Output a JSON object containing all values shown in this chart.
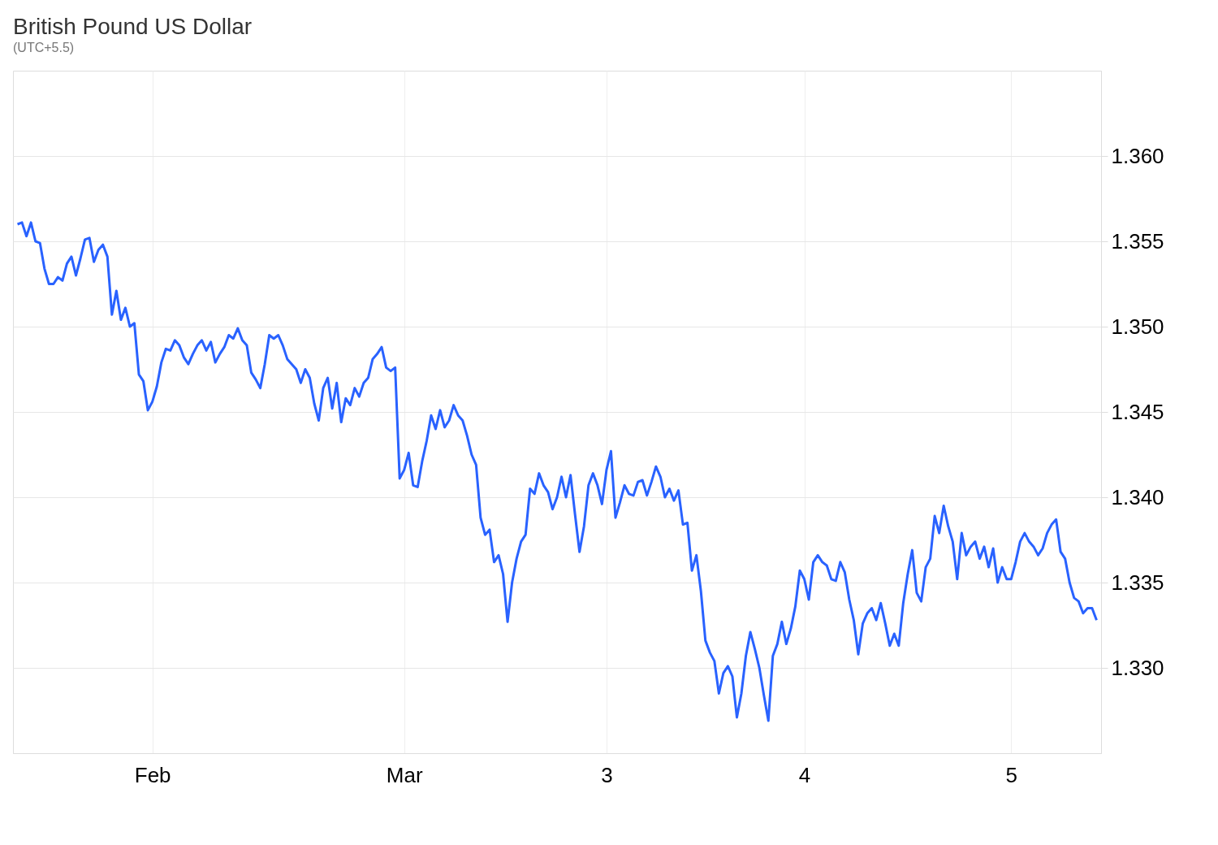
{
  "chart_data": {
    "type": "line",
    "title": "British Pound US Dollar",
    "subtitle": "(UTC+5.5)",
    "categories": [
      null,
      null,
      null,
      null,
      null,
      null,
      null,
      null,
      null,
      null,
      null,
      null,
      null,
      null,
      null,
      null,
      null,
      null,
      null,
      null,
      null,
      null,
      null,
      null,
      null,
      null,
      null,
      null,
      null,
      null,
      "Feb",
      null,
      null,
      null,
      null,
      null,
      null,
      null,
      null,
      null,
      null,
      null,
      null,
      null,
      null,
      null,
      null,
      null,
      null,
      null,
      null,
      null,
      null,
      null,
      null,
      null,
      null,
      null,
      null,
      null,
      null,
      null,
      null,
      null,
      null,
      null,
      null,
      null,
      null,
      null,
      null,
      null,
      null,
      null,
      null,
      null,
      null,
      null,
      null,
      null,
      null,
      null,
      null,
      null,
      null,
      null,
      "Mar",
      null,
      null,
      null,
      null,
      null,
      null,
      null,
      null,
      null,
      null,
      null,
      null,
      null,
      null,
      null,
      null,
      null,
      null,
      null,
      null,
      null,
      null,
      null,
      null,
      null,
      null,
      null,
      null,
      null,
      null,
      null,
      null,
      null,
      null,
      null,
      null,
      null,
      null,
      null,
      null,
      null,
      null,
      null,
      null,
      "3",
      null,
      null,
      null,
      null,
      null,
      null,
      null,
      null,
      null,
      null,
      null,
      null,
      null,
      null,
      null,
      null,
      null,
      null,
      null,
      null,
      null,
      null,
      null,
      null,
      null,
      null,
      null,
      null,
      null,
      null,
      null,
      null,
      null,
      null,
      null,
      null,
      null,
      null,
      null,
      null,
      null,
      null,
      null,
      "4",
      null,
      null,
      null,
      null,
      null,
      null,
      null,
      null,
      null,
      null,
      null,
      null,
      null,
      null,
      null,
      null,
      null,
      null,
      null,
      null,
      null,
      null,
      null,
      null,
      null,
      null,
      null,
      null,
      null,
      null,
      null,
      null,
      null,
      null,
      null,
      null,
      null,
      null,
      null,
      null,
      null,
      null,
      null,
      null,
      null,
      "5",
      null,
      null,
      null,
      null,
      null,
      null,
      null,
      null,
      null,
      null,
      null,
      null,
      null,
      null,
      null,
      null,
      null,
      null,
      null
    ],
    "values": [
      1.356,
      1.3561,
      1.3553,
      1.3561,
      1.355,
      1.3549,
      1.3534,
      1.3525,
      1.3525,
      1.3529,
      1.3527,
      1.3537,
      1.3541,
      1.353,
      1.354,
      1.3551,
      1.3552,
      1.3538,
      1.3545,
      1.3548,
      1.3541,
      1.3507,
      1.3521,
      1.3504,
      1.3511,
      1.35,
      1.3502,
      1.3472,
      1.3468,
      1.3451,
      1.3456,
      1.3465,
      1.3479,
      1.3487,
      1.3486,
      1.3492,
      1.3489,
      1.3482,
      1.3478,
      1.3484,
      1.3489,
      1.3492,
      1.3486,
      1.3491,
      1.3479,
      1.3484,
      1.3488,
      1.3495,
      1.3493,
      1.3499,
      1.3492,
      1.3489,
      1.3473,
      1.3469,
      1.3464,
      1.3478,
      1.3495,
      1.3493,
      1.3495,
      1.3489,
      1.3481,
      1.3478,
      1.3475,
      1.3467,
      1.3475,
      1.347,
      1.3455,
      1.3445,
      1.3464,
      1.347,
      1.3452,
      1.3467,
      1.3444,
      1.3458,
      1.3454,
      1.3464,
      1.3459,
      1.3467,
      1.347,
      1.3481,
      1.3484,
      1.3488,
      1.3476,
      1.3474,
      1.3476,
      1.3411,
      1.3416,
      1.3426,
      1.3407,
      1.3406,
      1.3421,
      1.3433,
      1.3448,
      1.344,
      1.3451,
      1.3441,
      1.3445,
      1.3454,
      1.3448,
      1.3445,
      1.3436,
      1.3425,
      1.3419,
      1.3388,
      1.3378,
      1.3381,
      1.3362,
      1.3366,
      1.3355,
      1.3327,
      1.335,
      1.3364,
      1.3374,
      1.3378,
      1.3405,
      1.3402,
      1.3414,
      1.3407,
      1.3403,
      1.3393,
      1.34,
      1.3412,
      1.34,
      1.3413,
      1.339,
      1.3368,
      1.3383,
      1.3407,
      1.3414,
      1.3407,
      1.3396,
      1.3416,
      1.3427,
      1.3388,
      1.3397,
      1.3407,
      1.3402,
      1.3401,
      1.3409,
      1.341,
      1.3401,
      1.3409,
      1.3418,
      1.3412,
      1.34,
      1.3405,
      1.3398,
      1.3404,
      1.3384,
      1.3385,
      1.3357,
      1.3366,
      1.3345,
      1.3316,
      1.3309,
      1.3304,
      1.3285,
      1.3297,
      1.3301,
      1.3295,
      1.3271,
      1.3285,
      1.3307,
      1.3321,
      1.3311,
      1.33,
      1.3284,
      1.3269,
      1.3307,
      1.3314,
      1.3327,
      1.3314,
      1.3323,
      1.3336,
      1.3357,
      1.3352,
      1.334,
      1.3362,
      1.3366,
      1.3362,
      1.336,
      1.3352,
      1.3351,
      1.3362,
      1.3356,
      1.334,
      1.3328,
      1.3308,
      1.3326,
      1.3332,
      1.3335,
      1.3328,
      1.3338,
      1.3326,
      1.3313,
      1.332,
      1.3313,
      1.3338,
      1.3355,
      1.3369,
      1.3344,
      1.3339,
      1.3359,
      1.3364,
      1.3389,
      1.3379,
      1.3395,
      1.3383,
      1.3374,
      1.3352,
      1.3379,
      1.3366,
      1.3371,
      1.3374,
      1.3364,
      1.3371,
      1.3359,
      1.337,
      1.335,
      1.3359,
      1.3352,
      1.3352,
      1.3362,
      1.3374,
      1.3379,
      1.3374,
      1.3371,
      1.3366,
      1.337,
      1.3379,
      1.3384,
      1.3387,
      1.3368,
      1.3364,
      1.335,
      1.3341,
      1.3339,
      1.3332,
      1.3335,
      1.3335,
      1.3328
    ],
    "color": "#2962ff",
    "ylim": [
      1.325,
      1.365
    ],
    "yticks": [
      {
        "value": 1.33,
        "label": "1.330"
      },
      1.335,
      {
        "value": 1.34,
        "label": "1.340"
      },
      1.345,
      {
        "value": 1.35,
        "label": "1.350"
      },
      1.355,
      {
        "value": 1.36,
        "label": "1.360"
      }
    ],
    "grid": true,
    "marker": "none",
    "line_style": "solid"
  }
}
